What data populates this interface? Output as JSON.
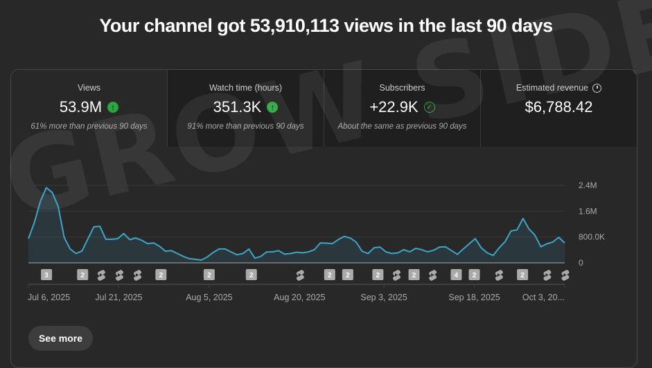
{
  "header": {
    "title": "Your channel got 53,910,113 views in the last 90 days"
  },
  "watermark": "GROW SIDE",
  "tiles": [
    {
      "label": "Views",
      "value": "53.9M",
      "indicator": "arrow-up-icon",
      "note": "61% more than previous 90 days",
      "selected": true
    },
    {
      "label": "Watch time (hours)",
      "value": "351.3K",
      "indicator": "arrow-up-icon",
      "note": "91% more than previous 90 days"
    },
    {
      "label": "Subscribers",
      "value": "+22.9K",
      "indicator": "check-circle-icon",
      "note": "About the same as previous 90 days"
    },
    {
      "label": "Estimated revenue",
      "value": "$6,788.42",
      "label_icon": "clock-icon",
      "note": ""
    }
  ],
  "colors": {
    "line": "#3ea6c8",
    "up": "#2ba640",
    "background": "#282828"
  },
  "see_more": "See more",
  "chart_data": {
    "type": "area",
    "ylim": [
      0,
      2400000
    ],
    "y_ticks": [
      {
        "value": 0,
        "label": "0"
      },
      {
        "value": 800000,
        "label": "800.0K"
      },
      {
        "value": 1600000,
        "label": "1.6M"
      },
      {
        "value": 2400000,
        "label": "2.4M"
      }
    ],
    "x_ticks": [
      {
        "day": 0,
        "label": "Jul 6, 2025"
      },
      {
        "day": 15,
        "label": "Jul 21, 2025"
      },
      {
        "day": 30,
        "label": "Aug 5, 2025"
      },
      {
        "day": 45,
        "label": "Aug 20, 2025"
      },
      {
        "day": 59,
        "label": "Sep 3, 2025"
      },
      {
        "day": 74,
        "label": "Sep 18, 2025"
      },
      {
        "day": 89,
        "label": "Oct 3, 20..."
      }
    ],
    "grid": true,
    "series": [
      {
        "values": [
          750000,
          1250000,
          1900000,
          2330000,
          2180000,
          1750000,
          790000,
          430000,
          290000,
          370000,
          750000,
          1120000,
          1130000,
          730000,
          730000,
          750000,
          910000,
          720000,
          770000,
          700000,
          595000,
          620000,
          515000,
          360000,
          380000,
          290000,
          200000,
          130000,
          110000,
          85000,
          180000,
          320000,
          430000,
          430000,
          340000,
          250000,
          290000,
          430000,
          145000,
          200000,
          340000,
          340000,
          380000,
          270000,
          290000,
          330000,
          310000,
          340000,
          410000,
          620000,
          610000,
          595000,
          720000,
          820000,
          770000,
          645000,
          360000,
          290000,
          465000,
          490000,
          340000,
          290000,
          310000,
          410000,
          340000,
          450000,
          410000,
          340000,
          390000,
          490000,
          500000,
          380000,
          265000,
          430000,
          595000,
          750000,
          465000,
          310000,
          230000,
          465000,
          660000,
          990000,
          1020000,
          1375000,
          1050000,
          860000,
          500000,
          590000,
          645000,
          790000,
          620000
        ]
      }
    ],
    "markers": [
      {
        "day": 3,
        "type": "count",
        "label": "3"
      },
      {
        "day": 9,
        "type": "count",
        "label": "2"
      },
      {
        "day": 12,
        "type": "shorts"
      },
      {
        "day": 15,
        "type": "shorts"
      },
      {
        "day": 18,
        "type": "shorts"
      },
      {
        "day": 22,
        "type": "count",
        "label": "2"
      },
      {
        "day": 30,
        "type": "count",
        "label": "2"
      },
      {
        "day": 37,
        "type": "count",
        "label": "2"
      },
      {
        "day": 45,
        "type": "shorts"
      },
      {
        "day": 50,
        "type": "count",
        "label": "2"
      },
      {
        "day": 53,
        "type": "count",
        "label": "2"
      },
      {
        "day": 58,
        "type": "count",
        "label": "2"
      },
      {
        "day": 61,
        "type": "shorts"
      },
      {
        "day": 64,
        "type": "count",
        "label": "2"
      },
      {
        "day": 67,
        "type": "shorts"
      },
      {
        "day": 71,
        "type": "count",
        "label": "4"
      },
      {
        "day": 74,
        "type": "count",
        "label": "2"
      },
      {
        "day": 78,
        "type": "shorts"
      },
      {
        "day": 82,
        "type": "count",
        "label": "2"
      },
      {
        "day": 86,
        "type": "shorts"
      },
      {
        "day": 89,
        "type": "shorts"
      }
    ]
  }
}
